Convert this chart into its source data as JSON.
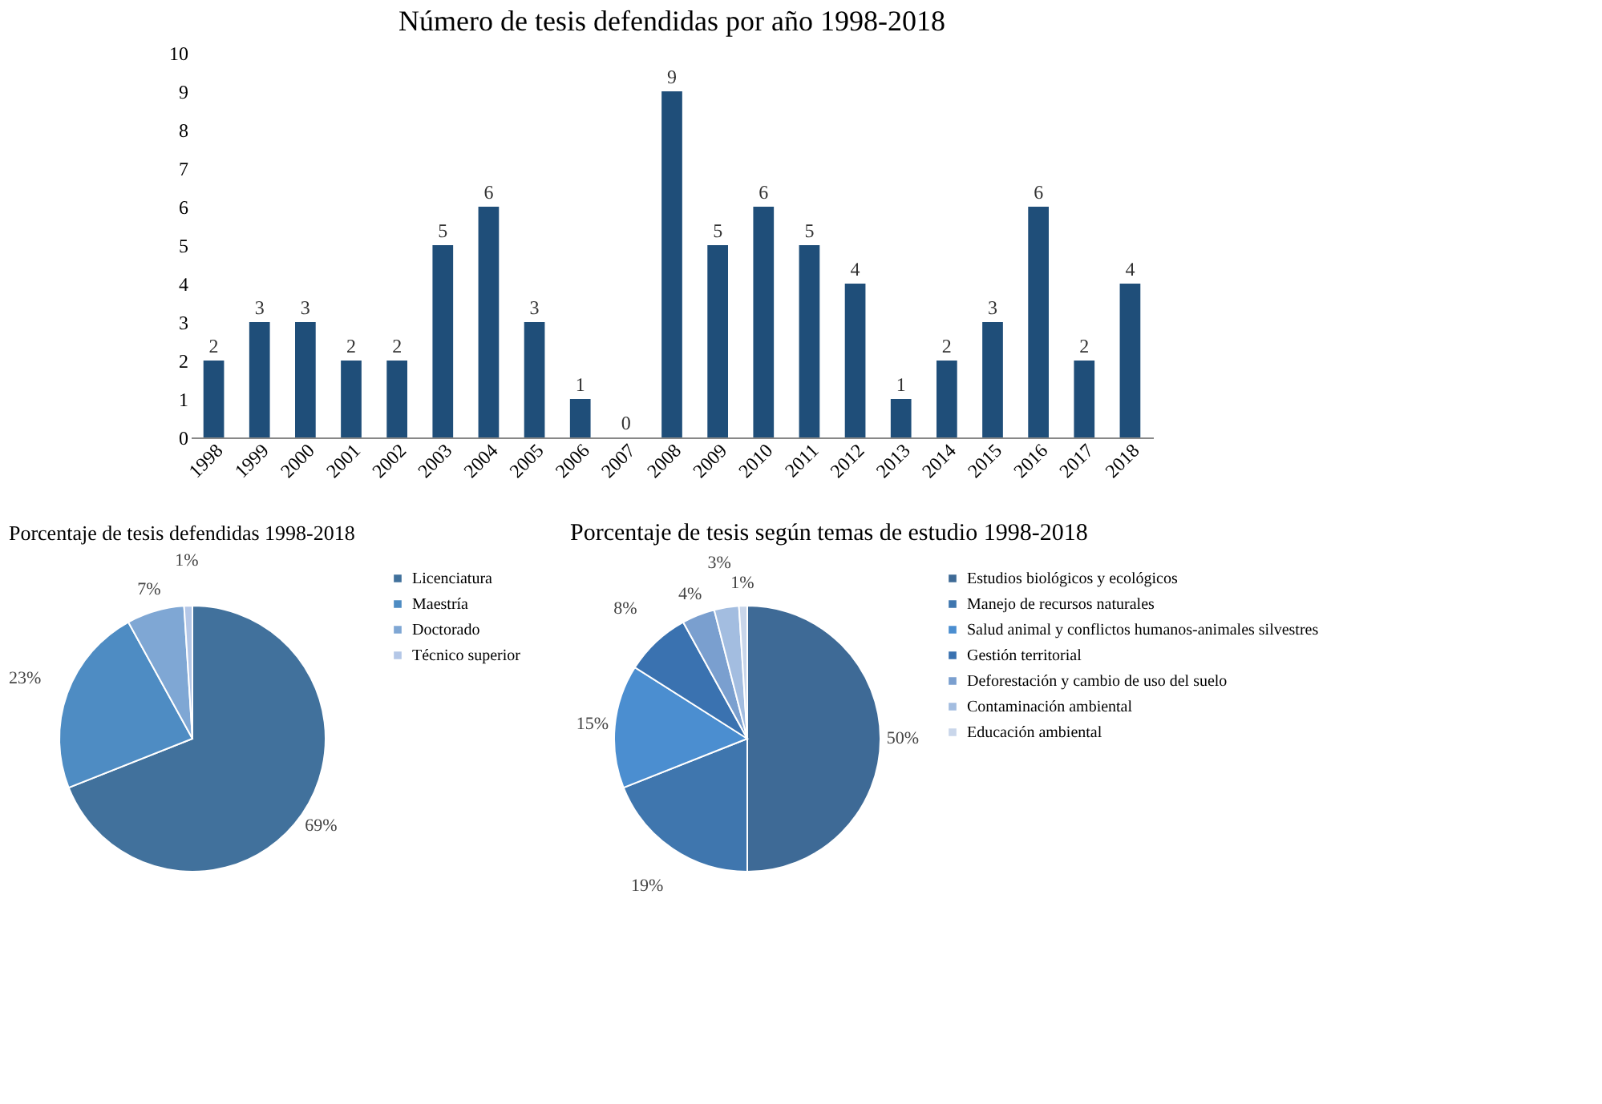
{
  "chart_data": [
    {
      "type": "bar",
      "title": "Número de tesis defendidas por año 1998-2018",
      "categories": [
        "1998",
        "1999",
        "2000",
        "2001",
        "2002",
        "2003",
        "2004",
        "2005",
        "2006",
        "2007",
        "2008",
        "2009",
        "2010",
        "2011",
        "2012",
        "2013",
        "2014",
        "2015",
        "2016",
        "2017",
        "2018"
      ],
      "values": [
        2,
        3,
        3,
        2,
        2,
        5,
        6,
        3,
        1,
        0,
        9,
        5,
        6,
        5,
        4,
        1,
        2,
        3,
        6,
        2,
        4
      ],
      "color": "#1f4e79",
      "ylim": [
        0,
        10
      ],
      "yticks": [
        0,
        1,
        2,
        3,
        4,
        5,
        6,
        7,
        8,
        9,
        10
      ],
      "grid": false,
      "data_labels": true
    },
    {
      "type": "pie",
      "title": "Porcentaje de tesis defendidas 1998-2018",
      "categories": [
        "Licenciatura",
        "Maestría",
        "Doctorado",
        "Técnico superior"
      ],
      "values": [
        69,
        23,
        7,
        1
      ],
      "colors": [
        "#41719c",
        "#4e8cc3",
        "#7fa7d4",
        "#b4c7e7"
      ],
      "value_labels": [
        "69%",
        "23%",
        "7%",
        "1%"
      ],
      "legend": "right"
    },
    {
      "type": "pie",
      "title": "Porcentaje de tesis según temas de estudio 1998-2018",
      "categories": [
        "Estudios biológicos y ecológicos",
        "Manejo de recursos naturales",
        "Salud animal y conflictos humanos-animales silvestres",
        "Gestión territorial",
        "Deforestación y cambio de uso del suelo",
        "Contaminación ambiental",
        "Educación ambiental"
      ],
      "values": [
        50,
        19,
        15,
        8,
        4,
        3,
        1
      ],
      "colors": [
        "#3e6a96",
        "#3f76ae",
        "#4b8ed0",
        "#3a72b0",
        "#7a9fcf",
        "#a3bde0",
        "#c9d6ea"
      ],
      "value_labels": [
        "50%",
        "19%",
        "15%",
        "8%",
        "4%",
        "3%",
        "1%"
      ],
      "legend": "right"
    }
  ]
}
